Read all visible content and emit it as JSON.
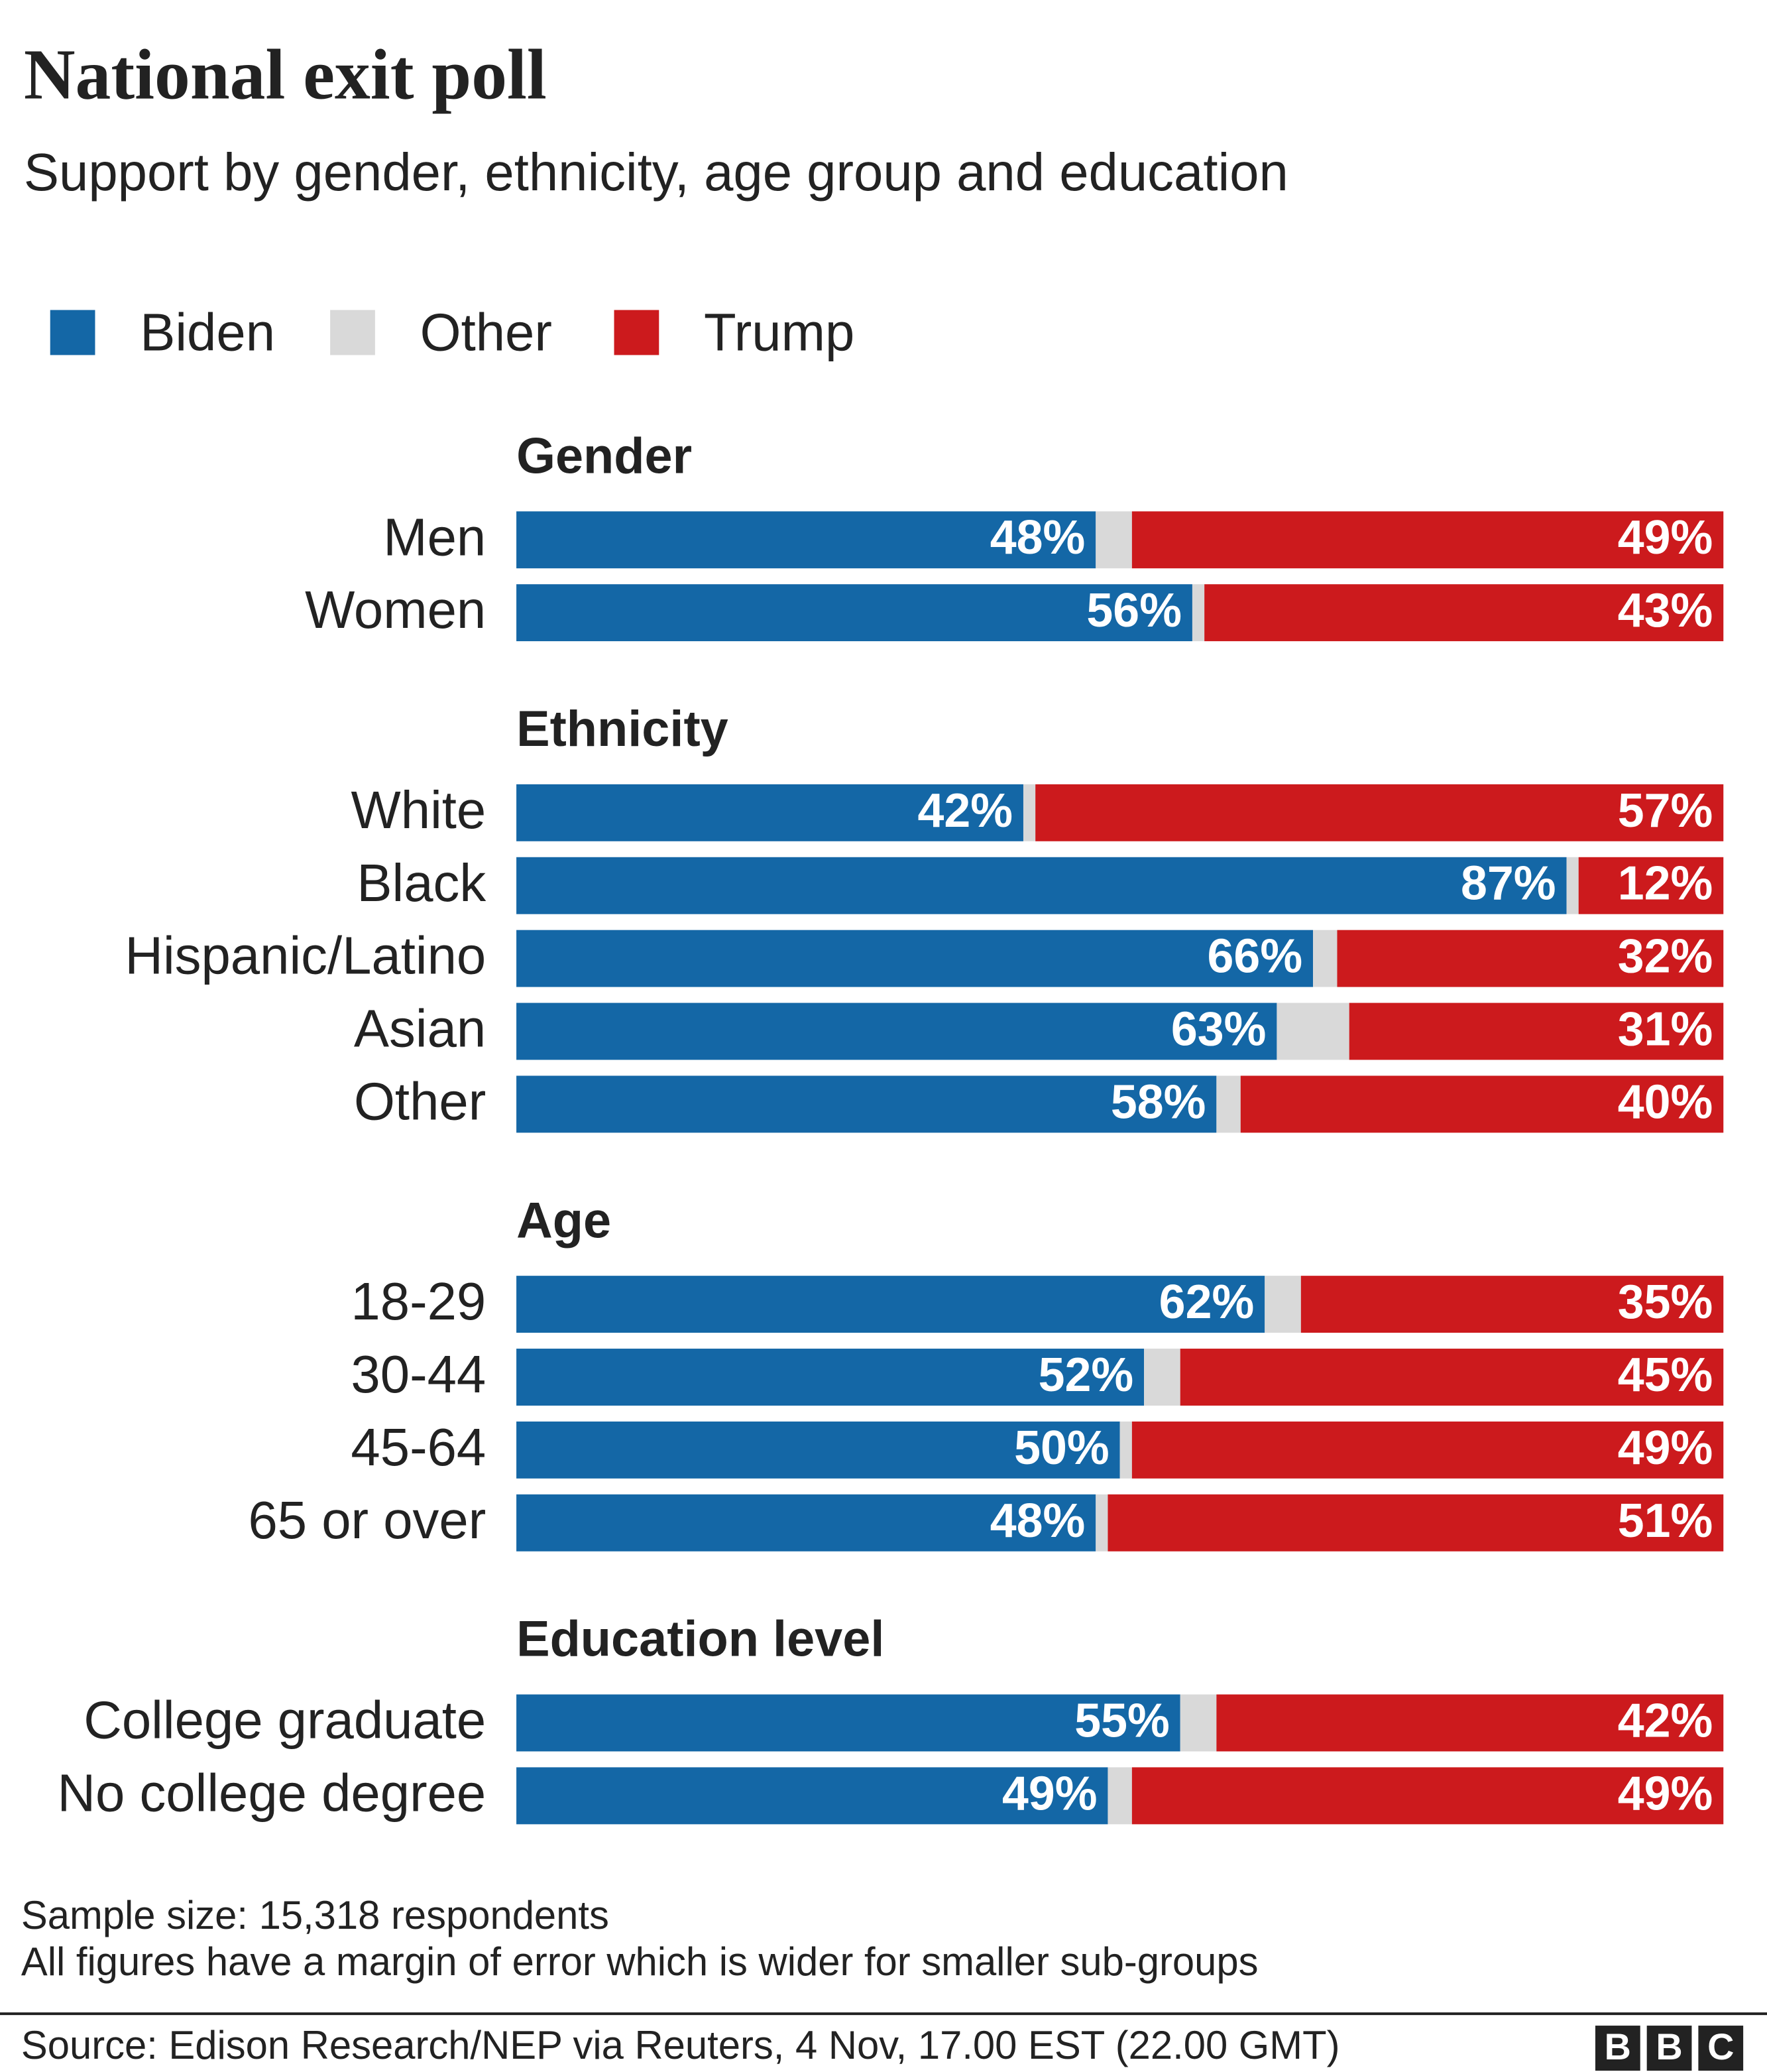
{
  "chart_data": {
    "type": "stacked-bar-horizontal",
    "title": "National exit poll",
    "subtitle": "Support by gender, ethnicity, age group and education",
    "groups": [
      {
        "title": "Gender",
        "categories": [
          "Men",
          "Women"
        ]
      },
      {
        "title": "Ethnicity",
        "categories": [
          "White",
          "Black",
          "Hispanic/Latino",
          "Asian",
          "Other"
        ]
      },
      {
        "title": "Age",
        "categories": [
          "18-29",
          "30-44",
          "45-64",
          "65 or over"
        ]
      },
      {
        "title": "Education level",
        "categories": [
          "College graduate",
          "No college degree"
        ]
      }
    ],
    "series": [
      {
        "name": "Biden",
        "color": "#1467a6",
        "values": [
          48,
          56,
          42,
          87,
          66,
          63,
          58,
          62,
          52,
          50,
          48,
          55,
          49
        ],
        "value_labels": [
          "48%",
          "56%",
          "42%",
          "87%",
          "66%",
          "63%",
          "58%",
          "62%",
          "52%",
          "50%",
          "48%",
          "55%",
          "49%"
        ]
      },
      {
        "name": "Other",
        "color": "#d9d9d9",
        "values": [
          3,
          1,
          1,
          1,
          2,
          6,
          2,
          3,
          3,
          1,
          1,
          3,
          2
        ]
      },
      {
        "name": "Trump",
        "color": "#cc1a1d",
        "values": [
          49,
          43,
          57,
          12,
          32,
          31,
          40,
          35,
          45,
          49,
          51,
          42,
          49
        ],
        "value_labels": [
          "49%",
          "43%",
          "57%",
          "12%",
          "32%",
          "31%",
          "40%",
          "35%",
          "45%",
          "49%",
          "51%",
          "42%",
          "49%"
        ]
      }
    ],
    "xlim": [
      0,
      100
    ],
    "notes": [
      "Sample size: 15,318 respondents",
      "All figures have a margin of error which is wider for smaller sub-groups"
    ],
    "source": "Source: Edison Research/NEP via Reuters,  4 Nov, 17.00 EST (22.00 GMT)",
    "logo": [
      "B",
      "B",
      "C"
    ]
  }
}
